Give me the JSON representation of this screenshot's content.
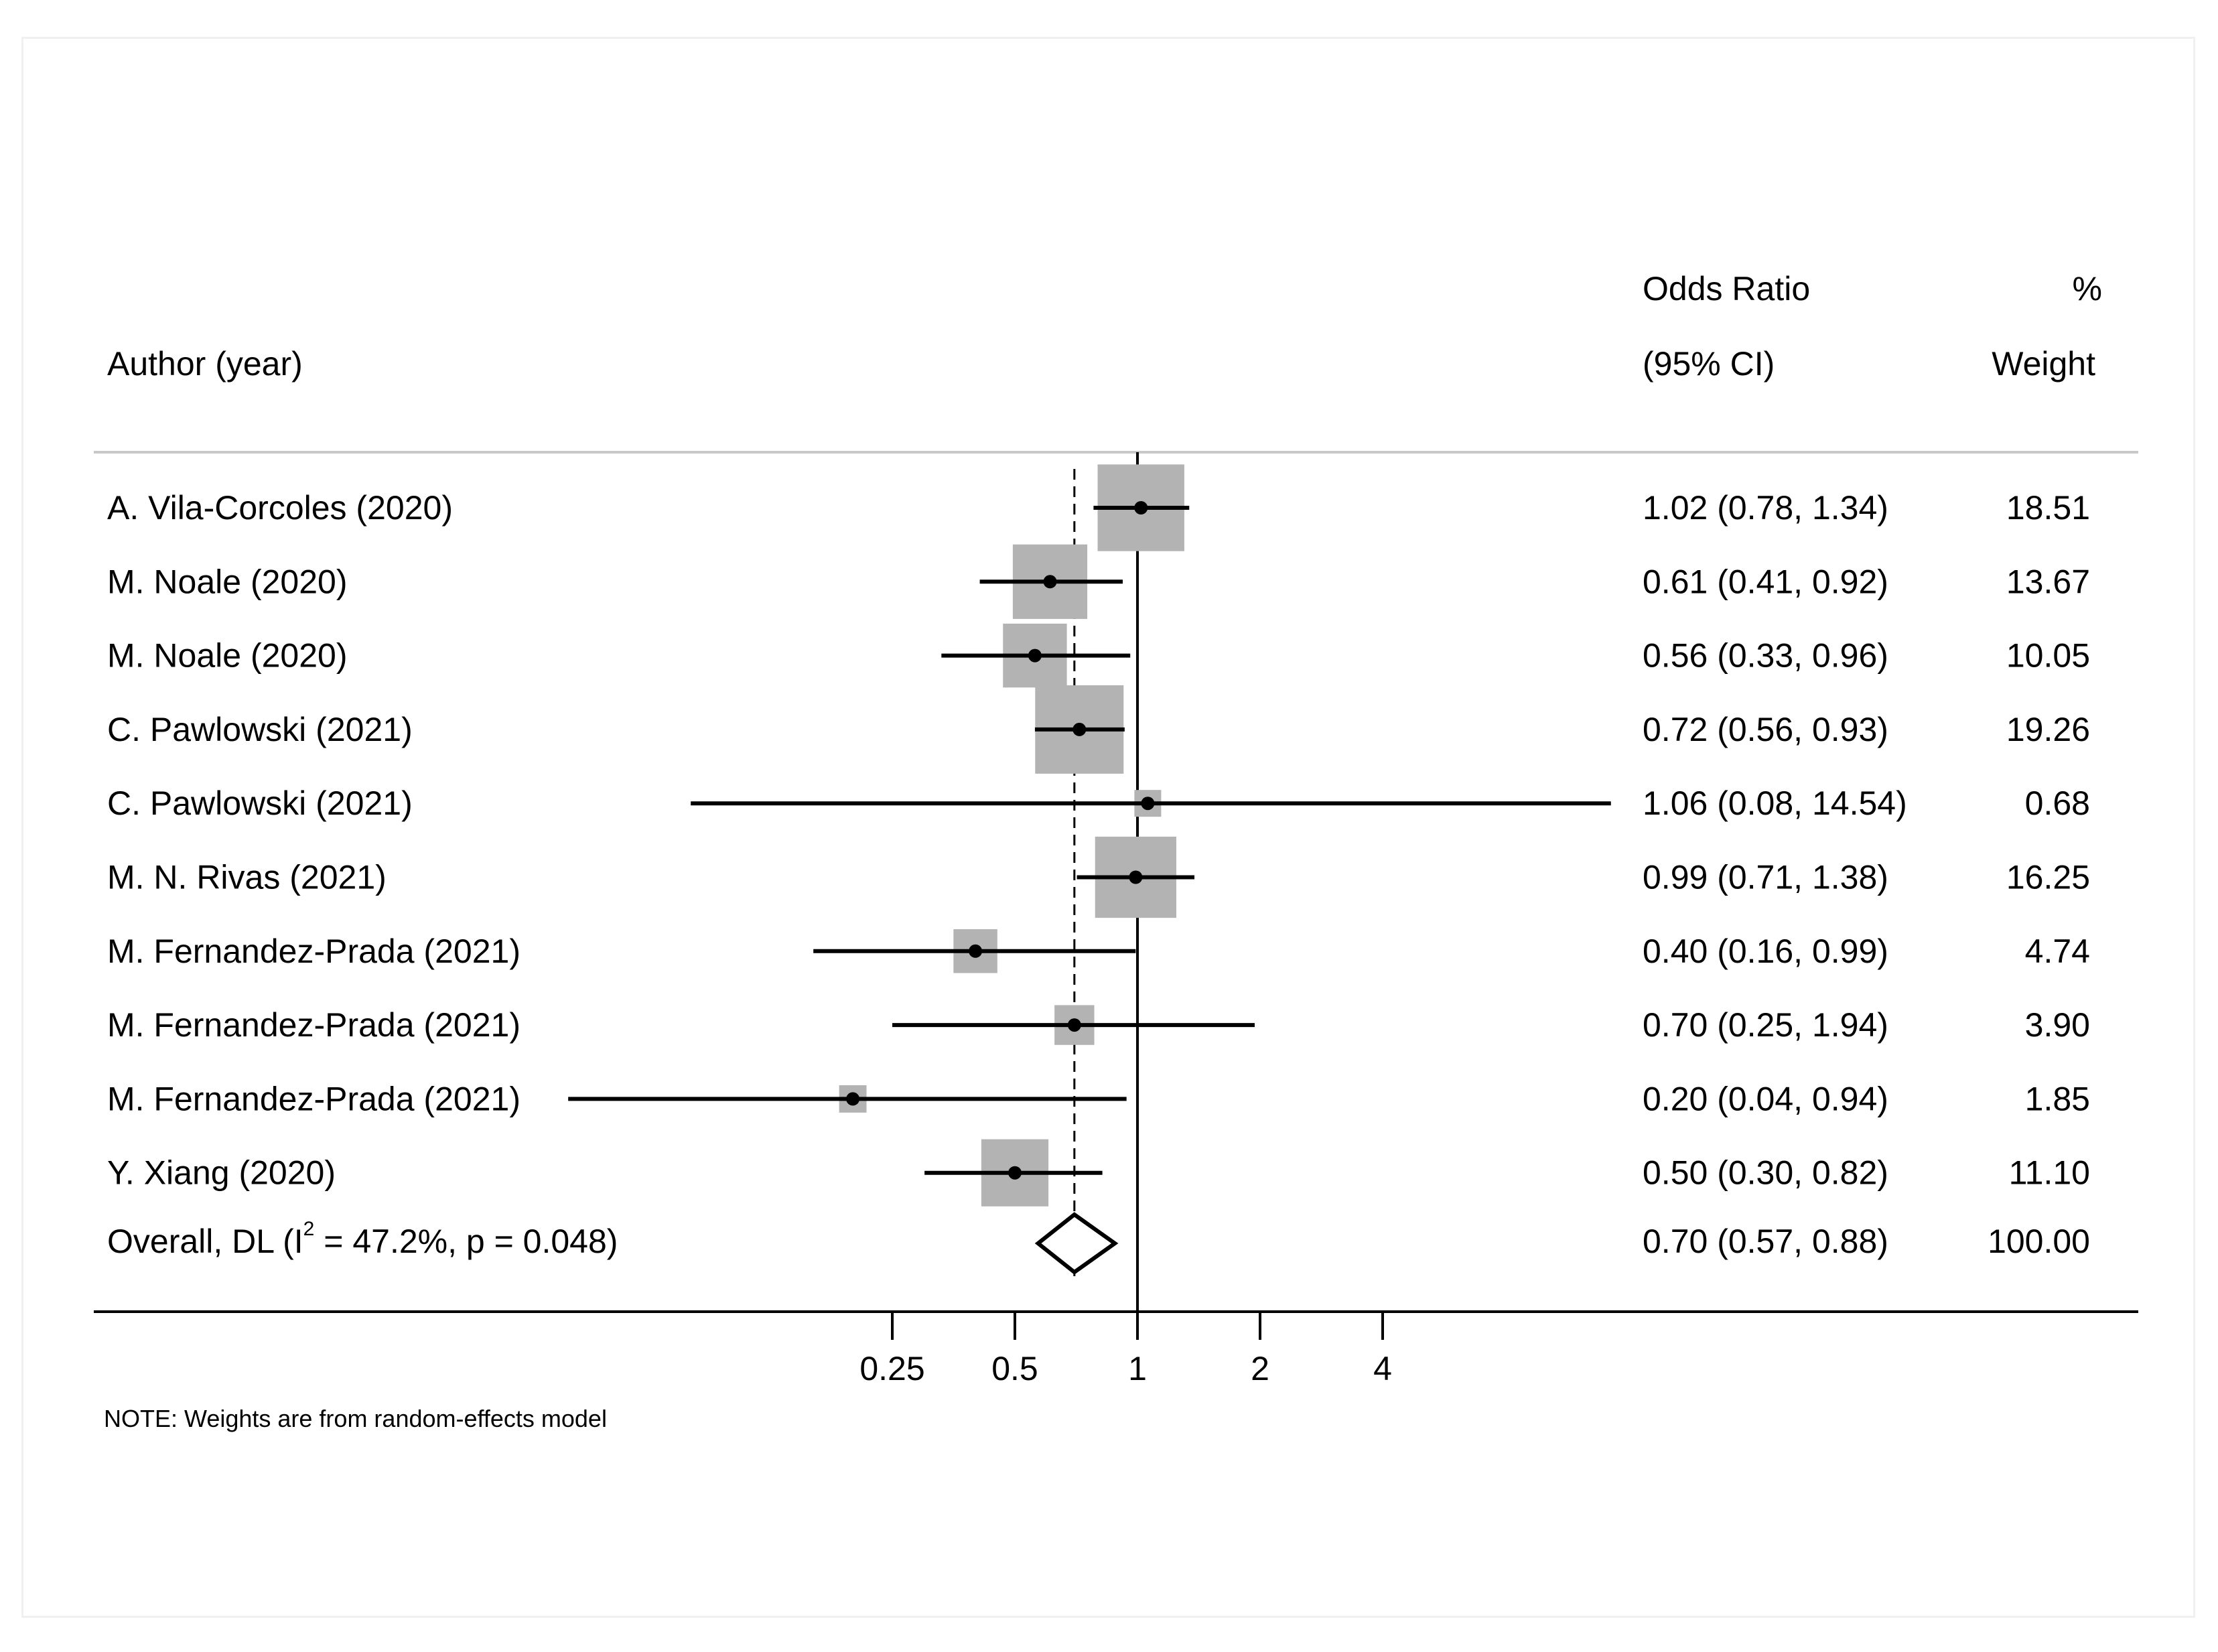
{
  "chart_data": {
    "type": "forest",
    "header": {
      "study_col": "Author (year)",
      "effect_col_line1": "Odds Ratio",
      "effect_col_line2": "(95% CI)",
      "weight_col_line1": "%",
      "weight_col_line2": "Weight"
    },
    "studies": [
      {
        "label": "A. Vila-Corcoles (2020)",
        "or": 1.02,
        "lo": 0.78,
        "hi": 1.34,
        "ci_text": "1.02 (0.78, 1.34)",
        "weight": 18.51,
        "weight_text": "18.51"
      },
      {
        "label": "M. Noale (2020)",
        "or": 0.61,
        "lo": 0.41,
        "hi": 0.92,
        "ci_text": "0.61 (0.41, 0.92)",
        "weight": 13.67,
        "weight_text": "13.67"
      },
      {
        "label": "M. Noale (2020)",
        "or": 0.56,
        "lo": 0.33,
        "hi": 0.96,
        "ci_text": "0.56 (0.33, 0.96)",
        "weight": 10.05,
        "weight_text": "10.05"
      },
      {
        "label": "C. Pawlowski (2021)",
        "or": 0.72,
        "lo": 0.56,
        "hi": 0.93,
        "ci_text": "0.72 (0.56, 0.93)",
        "weight": 19.26,
        "weight_text": "19.26"
      },
      {
        "label": "C. Pawlowski (2021)",
        "or": 1.06,
        "lo": 0.08,
        "hi": 14.54,
        "ci_text": "1.06 (0.08, 14.54)",
        "weight": 0.68,
        "weight_text": "0.68"
      },
      {
        "label": "M. N. Rivas (2021)",
        "or": 0.99,
        "lo": 0.71,
        "hi": 1.38,
        "ci_text": "0.99 (0.71, 1.38)",
        "weight": 16.25,
        "weight_text": "16.25"
      },
      {
        "label": "M. Fernandez-Prada (2021)",
        "or": 0.4,
        "lo": 0.16,
        "hi": 0.99,
        "ci_text": "0.40 (0.16, 0.99)",
        "weight": 4.74,
        "weight_text": "4.74"
      },
      {
        "label": "M. Fernandez-Prada (2021)",
        "or": 0.7,
        "lo": 0.25,
        "hi": 1.94,
        "ci_text": "0.70 (0.25, 1.94)",
        "weight": 3.9,
        "weight_text": "3.90"
      },
      {
        "label": "M. Fernandez-Prada (2021)",
        "or": 0.2,
        "lo": 0.04,
        "hi": 0.94,
        "ci_text": "0.20 (0.04, 0.94)",
        "weight": 1.85,
        "weight_text": "1.85"
      },
      {
        "label": "Y. Xiang (2020)",
        "or": 0.5,
        "lo": 0.3,
        "hi": 0.82,
        "ci_text": "0.50 (0.30, 0.82)",
        "weight": 11.1,
        "weight_text": "11.10"
      }
    ],
    "overall": {
      "label_before": "Overall, DL (I",
      "label_sup": "2",
      "label_after": " = 47.2%, p = 0.048)",
      "or": 0.7,
      "lo": 0.57,
      "hi": 0.88,
      "ci_text": "0.70 (0.57, 0.88)",
      "weight_text": "100.00"
    },
    "x_scale": "log",
    "x_ticks": [
      0.25,
      0.5,
      1,
      2,
      4
    ],
    "x_tick_labels": [
      "0.25",
      "0.5",
      "1",
      "2",
      "4"
    ],
    "null_line": 1,
    "note": "NOTE: Weights are from random-effects model",
    "colors": {
      "box": "#b3b3b3",
      "line": "#000000",
      "rule_top": "#c8c8c8"
    }
  }
}
